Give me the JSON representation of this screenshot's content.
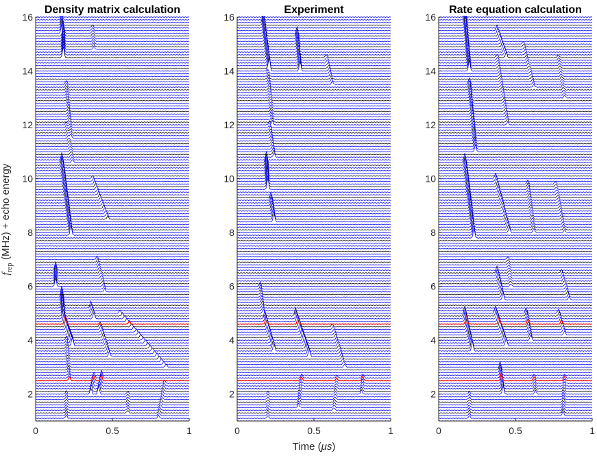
{
  "figure": {
    "xlabel_prefix": "Time (",
    "xlabel_unit": "μs",
    "xlabel_suffix": ")",
    "ylabel_f": "f",
    "ylabel_sub": "rep",
    "ylabel_rest": " (MHz) + echo energy"
  },
  "colors": {
    "trace": "#0000ff",
    "baseline": "#000000",
    "highlight": "#ff0000",
    "axis": "#262626"
  },
  "chart_data": [
    {
      "type": "line",
      "title": "Density matrix calculation",
      "x_range": [
        0,
        1
      ],
      "y_range": [
        1,
        16
      ],
      "xticks": [
        0,
        0.5,
        1
      ],
      "xtick_labels": [
        "0",
        "0.5",
        "1"
      ],
      "yticks": [
        2,
        4,
        6,
        8,
        10,
        12,
        14,
        16
      ],
      "ytick_labels": [
        "2",
        "4",
        "6",
        "8",
        "10",
        "12",
        "14",
        "16"
      ],
      "grid": false,
      "trace_spacing_MHz": 0.1,
      "highlighted_traces_MHz": [
        2.5,
        4.6
      ],
      "echo_peaks": [
        {
          "f_start": 1.1,
          "f_end": 2.0,
          "t_start": 0.2,
          "t_end": 0.2,
          "amp": 0.12
        },
        {
          "f_start": 1.1,
          "f_end": 2.4,
          "t_start": 0.8,
          "t_end": 0.84,
          "amp": 0.12
        },
        {
          "f_start": 1.3,
          "f_end": 2.0,
          "t_start": 0.6,
          "t_end": 0.6,
          "amp": 0.1
        },
        {
          "f_start": 2.0,
          "f_end": 2.6,
          "t_start": 0.41,
          "t_end": 0.43,
          "amp": 0.28
        },
        {
          "f_start": 2.0,
          "f_end": 2.6,
          "t_start": 0.36,
          "t_end": 0.38,
          "amp": 0.22
        },
        {
          "f_start": 2.5,
          "f_end": 4.0,
          "t_start": 0.22,
          "t_end": 0.2,
          "amp": 0.15
        },
        {
          "f_start": 3.0,
          "f_end": 5.0,
          "t_start": 0.85,
          "t_end": 0.55,
          "amp": 0.12
        },
        {
          "f_start": 3.4,
          "f_end": 4.5,
          "t_start": 0.48,
          "t_end": 0.42,
          "amp": 0.18
        },
        {
          "f_start": 3.8,
          "f_end": 4.8,
          "t_start": 0.24,
          "t_end": 0.18,
          "amp": 0.35
        },
        {
          "f_start": 4.9,
          "f_end": 5.6,
          "t_start": 0.18,
          "t_end": 0.17,
          "amp": 0.42
        },
        {
          "f_start": 4.8,
          "f_end": 5.2,
          "t_start": 0.38,
          "t_end": 0.36,
          "amp": 0.25
        },
        {
          "f_start": 6.0,
          "f_end": 6.6,
          "t_start": 0.13,
          "t_end": 0.13,
          "amp": 0.3
        },
        {
          "f_start": 5.8,
          "f_end": 7.0,
          "t_start": 0.45,
          "t_end": 0.4,
          "amp": 0.12
        },
        {
          "f_start": 7.9,
          "f_end": 10.6,
          "t_start": 0.23,
          "t_end": 0.17,
          "amp": 0.38
        },
        {
          "f_start": 8.5,
          "f_end": 10.0,
          "t_start": 0.47,
          "t_end": 0.37,
          "amp": 0.12
        },
        {
          "f_start": 10.6,
          "f_end": 12.0,
          "t_start": 0.24,
          "t_end": 0.2,
          "amp": 0.12
        },
        {
          "f_start": 11.5,
          "f_end": 13.5,
          "t_start": 0.23,
          "t_end": 0.2,
          "amp": 0.15
        },
        {
          "f_start": 14.5,
          "f_end": 15.4,
          "t_start": 0.18,
          "t_end": 0.18,
          "amp": 0.4
        },
        {
          "f_start": 15.4,
          "f_end": 16.0,
          "t_start": 0.17,
          "t_end": 0.17,
          "amp": 0.25
        },
        {
          "f_start": 14.8,
          "f_end": 15.6,
          "t_start": 0.38,
          "t_end": 0.37,
          "amp": 0.12
        }
      ]
    },
    {
      "type": "line",
      "title": "Experiment",
      "x_range": [
        0,
        1
      ],
      "y_range": [
        1,
        16
      ],
      "xticks": [
        0,
        0.5,
        1
      ],
      "xtick_labels": [
        "0",
        "0.5",
        "1"
      ],
      "yticks": [
        2,
        4,
        6,
        8,
        10,
        12,
        14,
        16
      ],
      "ytick_labels": [
        "2",
        "4",
        "6",
        "8",
        "10",
        "12",
        "14",
        "16"
      ],
      "grid": false,
      "trace_spacing_MHz": 0.1,
      "highlighted_traces_MHz": [
        2.5,
        4.6
      ],
      "echo_peaks": [
        {
          "f_start": 1.1,
          "f_end": 2.0,
          "t_start": 0.2,
          "t_end": 0.2,
          "amp": 0.1
        },
        {
          "f_start": 1.5,
          "f_end": 2.6,
          "t_start": 0.4,
          "t_end": 0.42,
          "amp": 0.15
        },
        {
          "f_start": 1.4,
          "f_end": 2.6,
          "t_start": 0.63,
          "t_end": 0.65,
          "amp": 0.1
        },
        {
          "f_start": 2.0,
          "f_end": 2.6,
          "t_start": 0.81,
          "t_end": 0.82,
          "amp": 0.15
        },
        {
          "f_start": 3.6,
          "f_end": 4.8,
          "t_start": 0.24,
          "t_end": 0.18,
          "amp": 0.3
        },
        {
          "f_start": 3.4,
          "f_end": 4.9,
          "t_start": 0.47,
          "t_end": 0.38,
          "amp": 0.3
        },
        {
          "f_start": 3.0,
          "f_end": 4.5,
          "t_start": 0.7,
          "t_end": 0.62,
          "amp": 0.12
        },
        {
          "f_start": 5.0,
          "f_end": 6.0,
          "t_start": 0.17,
          "t_end": 0.15,
          "amp": 0.15
        },
        {
          "f_start": 8.4,
          "f_end": 9.2,
          "t_start": 0.24,
          "t_end": 0.22,
          "amp": 0.3
        },
        {
          "f_start": 9.6,
          "f_end": 10.6,
          "t_start": 0.2,
          "t_end": 0.19,
          "amp": 0.42
        },
        {
          "f_start": 10.8,
          "f_end": 12.0,
          "t_start": 0.24,
          "t_end": 0.21,
          "amp": 0.15
        },
        {
          "f_start": 12.0,
          "f_end": 14.0,
          "t_start": 0.23,
          "t_end": 0.2,
          "amp": 0.15
        },
        {
          "f_start": 14.0,
          "f_end": 15.8,
          "t_start": 0.21,
          "t_end": 0.17,
          "amp": 0.45
        },
        {
          "f_start": 14.0,
          "f_end": 15.3,
          "t_start": 0.41,
          "t_end": 0.39,
          "amp": 0.35
        },
        {
          "f_start": 13.5,
          "f_end": 14.5,
          "t_start": 0.62,
          "t_end": 0.58,
          "amp": 0.12
        }
      ]
    },
    {
      "type": "line",
      "title": "Rate equation calculation",
      "x_range": [
        0,
        1
      ],
      "y_range": [
        1,
        16
      ],
      "xticks": [
        0,
        0.5,
        1
      ],
      "xtick_labels": [
        "0",
        "0.5",
        "1"
      ],
      "yticks": [
        2,
        4,
        6,
        8,
        10,
        12,
        14,
        16
      ],
      "ytick_labels": [
        "2",
        "4",
        "6",
        "8",
        "10",
        "12",
        "14",
        "16"
      ],
      "grid": false,
      "trace_spacing_MHz": 0.1,
      "highlighted_traces_MHz": [
        2.5,
        4.6
      ],
      "echo_peaks": [
        {
          "f_start": 1.1,
          "f_end": 2.0,
          "t_start": 0.2,
          "t_end": 0.2,
          "amp": 0.1
        },
        {
          "f_start": 1.2,
          "f_end": 2.6,
          "t_start": 0.81,
          "t_end": 0.82,
          "amp": 0.15
        },
        {
          "f_start": 2.0,
          "f_end": 2.9,
          "t_start": 0.42,
          "t_end": 0.4,
          "amp": 0.3
        },
        {
          "f_start": 2.0,
          "f_end": 2.6,
          "t_start": 0.63,
          "t_end": 0.62,
          "amp": 0.15
        },
        {
          "f_start": 3.6,
          "f_end": 4.9,
          "t_start": 0.22,
          "t_end": 0.17,
          "amp": 0.38
        },
        {
          "f_start": 3.8,
          "f_end": 5.0,
          "t_start": 0.44,
          "t_end": 0.37,
          "amp": 0.28
        },
        {
          "f_start": 4.0,
          "f_end": 5.0,
          "t_start": 0.6,
          "t_end": 0.57,
          "amp": 0.2
        },
        {
          "f_start": 4.2,
          "f_end": 5.0,
          "t_start": 0.82,
          "t_end": 0.78,
          "amp": 0.15
        },
        {
          "f_start": 5.5,
          "f_end": 6.5,
          "t_start": 0.42,
          "t_end": 0.38,
          "amp": 0.25
        },
        {
          "f_start": 5.5,
          "f_end": 6.5,
          "t_start": 0.85,
          "t_end": 0.8,
          "amp": 0.12
        },
        {
          "f_start": 6.0,
          "f_end": 7.0,
          "t_start": 0.47,
          "t_end": 0.45,
          "amp": 0.1
        },
        {
          "f_start": 7.8,
          "f_end": 10.6,
          "t_start": 0.23,
          "t_end": 0.17,
          "amp": 0.35
        },
        {
          "f_start": 8.0,
          "f_end": 10.0,
          "t_start": 0.46,
          "t_end": 0.37,
          "amp": 0.2
        },
        {
          "f_start": 8.0,
          "f_end": 9.8,
          "t_start": 0.62,
          "t_end": 0.58,
          "amp": 0.15
        },
        {
          "f_start": 8.0,
          "f_end": 9.8,
          "t_start": 0.82,
          "t_end": 0.76,
          "amp": 0.1
        },
        {
          "f_start": 11.0,
          "f_end": 13.5,
          "t_start": 0.24,
          "t_end": 0.2,
          "amp": 0.25
        },
        {
          "f_start": 12.0,
          "f_end": 14.5,
          "t_start": 0.45,
          "t_end": 0.38,
          "amp": 0.12
        },
        {
          "f_start": 13.4,
          "f_end": 15.0,
          "t_start": 0.62,
          "t_end": 0.55,
          "amp": 0.1
        },
        {
          "f_start": 13.0,
          "f_end": 14.5,
          "t_start": 0.82,
          "t_end": 0.78,
          "amp": 0.1
        },
        {
          "f_start": 14.0,
          "f_end": 16.0,
          "t_start": 0.2,
          "t_end": 0.17,
          "amp": 0.4
        },
        {
          "f_start": 14.5,
          "f_end": 15.5,
          "t_start": 0.44,
          "t_end": 0.38,
          "amp": 0.2
        }
      ]
    }
  ]
}
